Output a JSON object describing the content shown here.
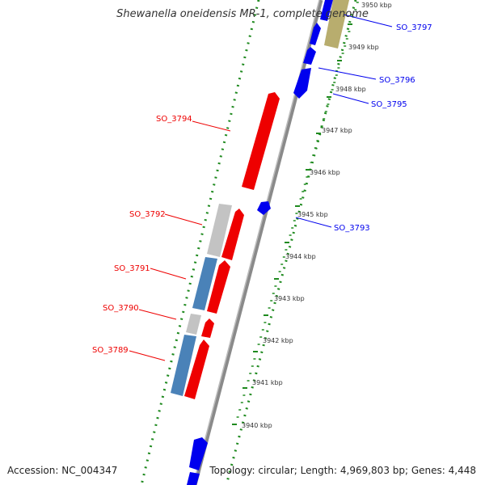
{
  "title": "Shewanella oneidensis MR-1, complete genome",
  "footer": {
    "accession": "Accession: NC_004347",
    "topology": "Topology: circular; Length: 4,969,803 bp; Genes: 4,448"
  },
  "colors": {
    "forward": "#0000ee",
    "reverse": "#ee0000",
    "backbone": "#8a8a8a",
    "tick": "#1f8a1f",
    "steelblue": "#4a82b8",
    "gray": "#bdbdbd",
    "olive": "#b8ad6e"
  },
  "ticks": [
    {
      "label": "3940 kbp"
    },
    {
      "label": "3941 kbp"
    },
    {
      "label": "3942 kbp"
    },
    {
      "label": "3943 kbp"
    },
    {
      "label": "3944 kbp"
    },
    {
      "label": "3945 kbp"
    },
    {
      "label": "3946 kbp"
    },
    {
      "label": "3947 kbp"
    },
    {
      "label": "3948 kbp"
    },
    {
      "label": "3949 kbp"
    },
    {
      "label": "3950 kbp"
    }
  ],
  "gene_labels": [
    {
      "label": "SO_3797",
      "strand": "forward"
    },
    {
      "label": "SO_3796",
      "strand": "forward"
    },
    {
      "label": "SO_3795",
      "strand": "forward"
    },
    {
      "label": "SO_3794",
      "strand": "reverse"
    },
    {
      "label": "SO_3793",
      "strand": "forward"
    },
    {
      "label": "SO_3792",
      "strand": "reverse"
    },
    {
      "label": "SO_3791",
      "strand": "reverse"
    },
    {
      "label": "SO_3790",
      "strand": "reverse"
    },
    {
      "label": "SO_3789",
      "strand": "reverse"
    }
  ]
}
